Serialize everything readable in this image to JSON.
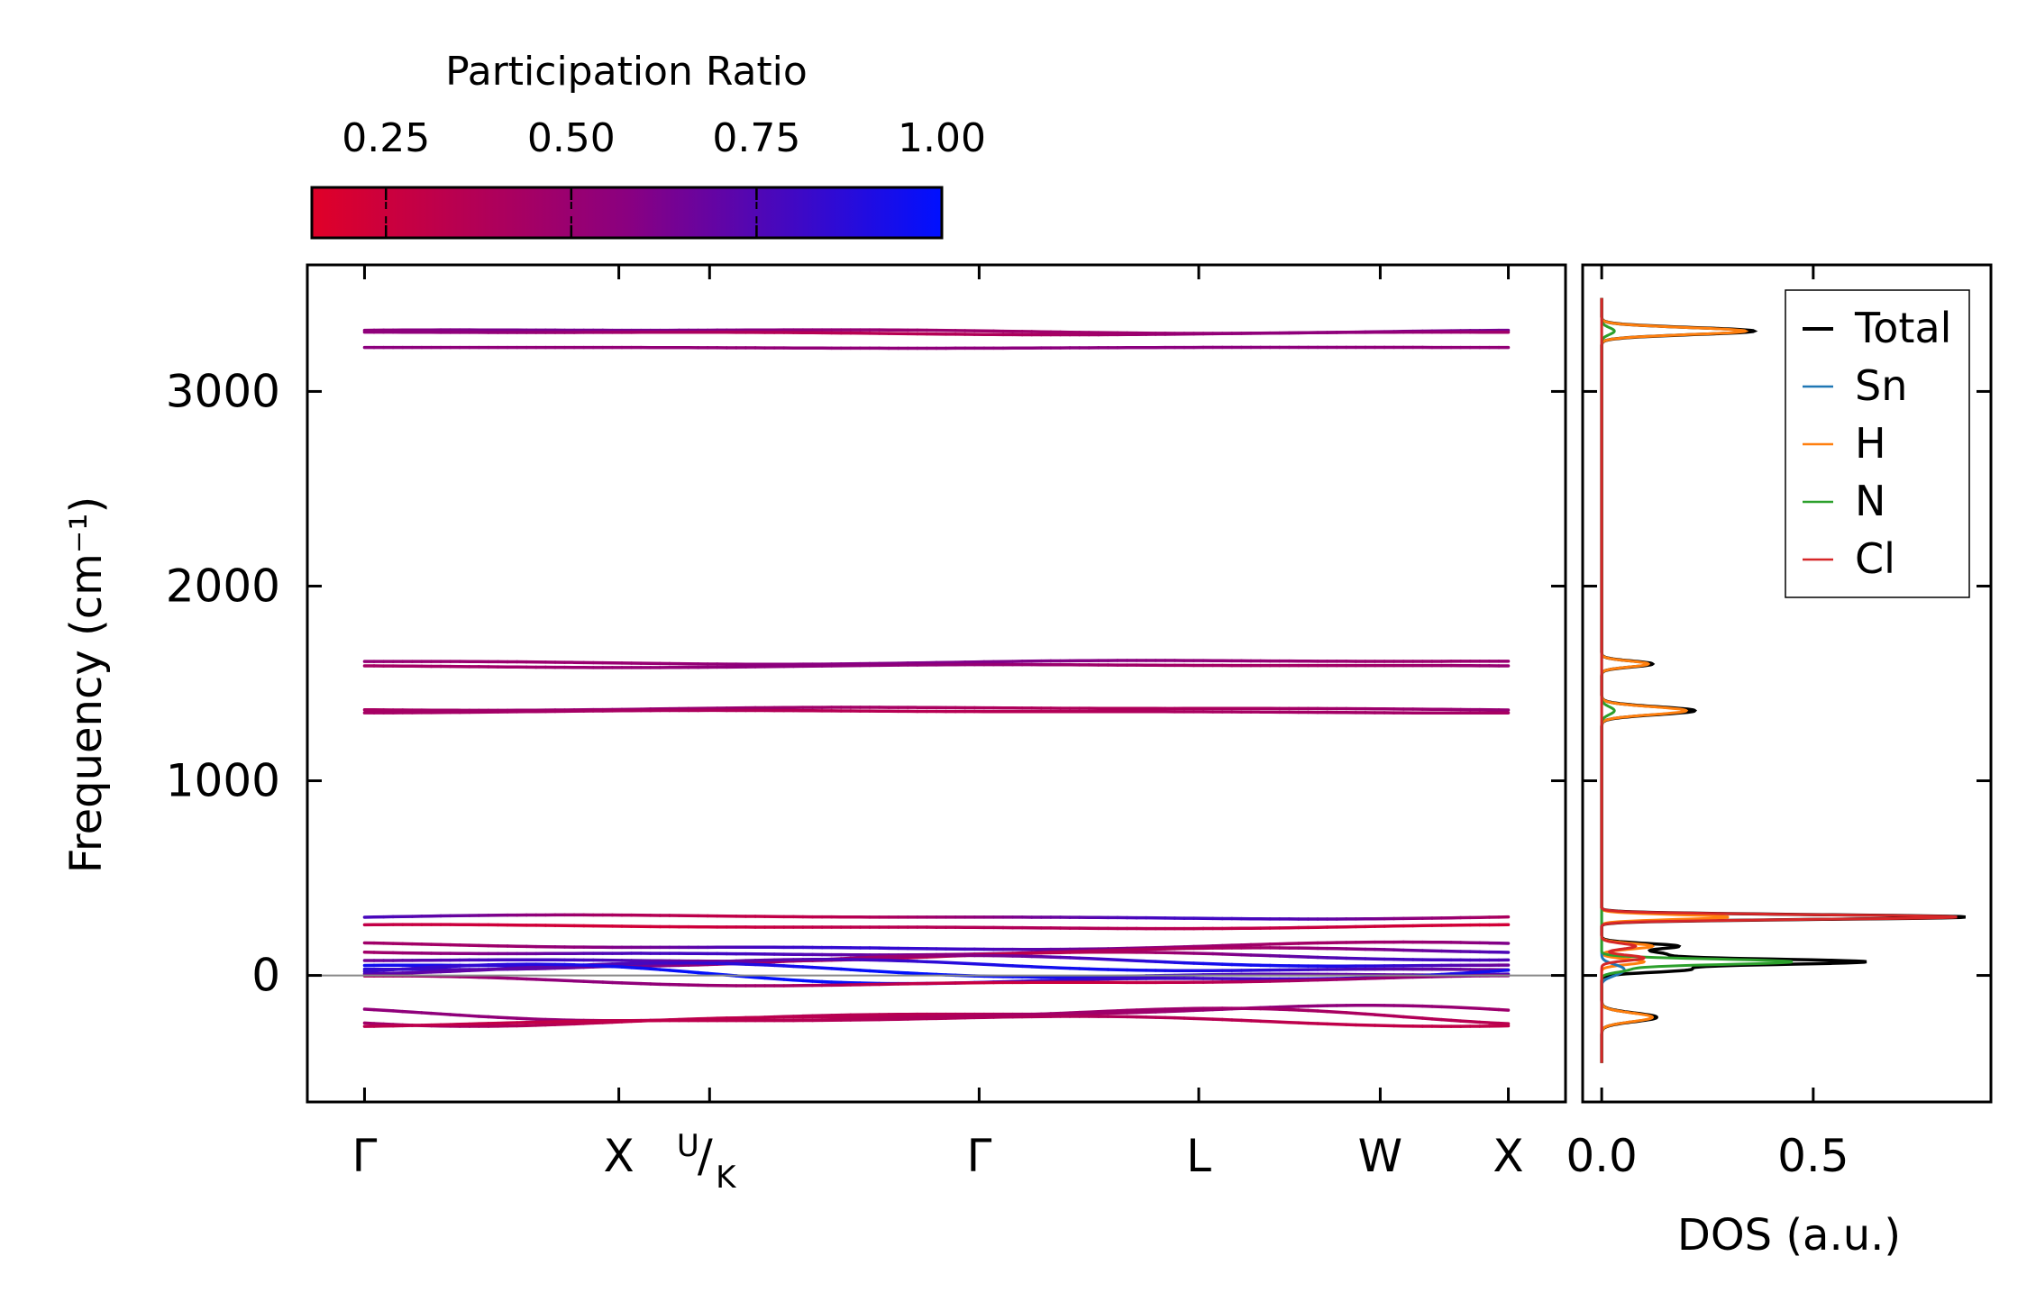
{
  "colorbar": {
    "label": "Participation Ratio",
    "ticks": [
      {
        "value": 0.25,
        "label": "0.25"
      },
      {
        "value": 0.5,
        "label": "0.50"
      },
      {
        "value": 0.75,
        "label": "0.75"
      },
      {
        "value": 1.0,
        "label": "1.00"
      }
    ],
    "range": [
      0.15,
      1.0
    ],
    "color_low": "#e00028",
    "color_mid": "#8a0080",
    "color_high": "#0010ff"
  },
  "chart_data": [
    {
      "type": "line",
      "name": "phonon-band-structure",
      "ylabel": "Frequency (cm⁻¹)",
      "ylim": [
        -650,
        3650
      ],
      "yticks": [
        0,
        1000,
        2000,
        3000
      ],
      "xlim": [
        -0.15,
        3.15
      ],
      "kpoints": [
        {
          "x": 0.0,
          "label": "Γ"
        },
        {
          "x": 0.667,
          "label": "X"
        },
        {
          "x": 0.905,
          "label": "U/K"
        },
        {
          "x": 1.612,
          "label": "Γ"
        },
        {
          "x": 2.188,
          "label": "L"
        },
        {
          "x": 2.664,
          "label": "W"
        },
        {
          "x": 3.0,
          "label": "X"
        }
      ],
      "zero_line": 0,
      "bands": [
        {
          "level": 3310,
          "amp": 8,
          "pr": 0.55,
          "pr_amp": 0.08
        },
        {
          "level": 3300,
          "amp": 6,
          "pr": 0.45,
          "pr_amp": 0.1
        },
        {
          "level": 3225,
          "amp": 2,
          "pr": 0.55,
          "pr_amp": 0.02
        },
        {
          "level": 1610,
          "amp": 8,
          "pr": 0.55,
          "pr_amp": 0.06
        },
        {
          "level": 1590,
          "amp": 6,
          "pr": 0.5,
          "pr_amp": 0.06
        },
        {
          "level": 1370,
          "amp": 6,
          "pr": 0.45,
          "pr_amp": 0.06
        },
        {
          "level": 1355,
          "amp": 5,
          "pr": 0.4,
          "pr_amp": 0.05
        },
        {
          "level": 300,
          "amp": 8,
          "pr": 0.55,
          "pr_amp": 0.25
        },
        {
          "level": 250,
          "amp": 8,
          "pr": 0.3,
          "pr_amp": 0.08
        },
        {
          "level": 150,
          "amp": 15,
          "pr": 0.65,
          "pr_amp": 0.2
        },
        {
          "level": 120,
          "amp": 15,
          "pr": 0.6,
          "pr_amp": 0.2
        },
        {
          "level": 90,
          "amp": 20,
          "pr": 0.55,
          "pr_amp": 0.25
        },
        {
          "level": 65,
          "amp": 25,
          "pr": 0.7,
          "pr_amp": 0.25
        },
        {
          "level": 45,
          "amp": 25,
          "pr": 0.8,
          "pr_amp": 0.15
        },
        {
          "level": 20,
          "amp": 30,
          "pr": 0.85,
          "pr_amp": 0.15
        },
        {
          "level": 0,
          "amp": 40,
          "pr": 0.9,
          "pr_amp": 0.1
        },
        {
          "level": -30,
          "amp": 20,
          "pr": 0.4,
          "pr_amp": 0.15
        },
        {
          "level": -195,
          "amp": 30,
          "pr": 0.45,
          "pr_amp": 0.1
        },
        {
          "level": -215,
          "amp": 35,
          "pr": 0.4,
          "pr_amp": 0.08
        },
        {
          "level": -235,
          "amp": 20,
          "pr": 0.35,
          "pr_amp": 0.05
        }
      ]
    },
    {
      "type": "line",
      "name": "phonon-dos",
      "xlabel": "DOS (a.u.)",
      "xlim": [
        -0.045,
        0.92
      ],
      "xticks": [
        {
          "value": 0.0,
          "label": "0.0"
        },
        {
          "value": 0.5,
          "label": "0.5"
        }
      ],
      "ylim": [
        -650,
        3650
      ],
      "series": [
        {
          "name": "Total",
          "color": "#000000",
          "peaks": [
            [
              3310,
              0.36,
              18
            ],
            [
              1600,
              0.12,
              15
            ],
            [
              1360,
              0.22,
              20
            ],
            [
              300,
              0.86,
              12
            ],
            [
              150,
              0.18,
              14
            ],
            [
              110,
              0.14,
              14
            ],
            [
              70,
              0.62,
              14
            ],
            [
              30,
              0.2,
              14
            ],
            [
              -215,
              0.13,
              22
            ]
          ]
        },
        {
          "name": "Sn",
          "color": "#1f77b4",
          "peaks": [
            [
              40,
              0.04,
              20
            ],
            [
              10,
              0.03,
              20
            ]
          ]
        },
        {
          "name": "H",
          "color": "#ff7f0e",
          "peaks": [
            [
              3310,
              0.34,
              18
            ],
            [
              1600,
              0.11,
              15
            ],
            [
              1360,
              0.2,
              20
            ],
            [
              300,
              0.3,
              12
            ],
            [
              150,
              0.12,
              14
            ],
            [
              70,
              0.1,
              14
            ],
            [
              -215,
              0.12,
              22
            ]
          ]
        },
        {
          "name": "N",
          "color": "#2ca02c",
          "peaks": [
            [
              3310,
              0.03,
              18
            ],
            [
              1360,
              0.03,
              20
            ],
            [
              70,
              0.45,
              14
            ],
            [
              30,
              0.06,
              14
            ]
          ]
        },
        {
          "name": "Cl",
          "color": "#d62728",
          "peaks": [
            [
              300,
              0.84,
              12
            ],
            [
              150,
              0.08,
              14
            ],
            [
              90,
              0.1,
              14
            ]
          ]
        }
      ],
      "dos_range": [
        -450,
        3480
      ]
    }
  ]
}
